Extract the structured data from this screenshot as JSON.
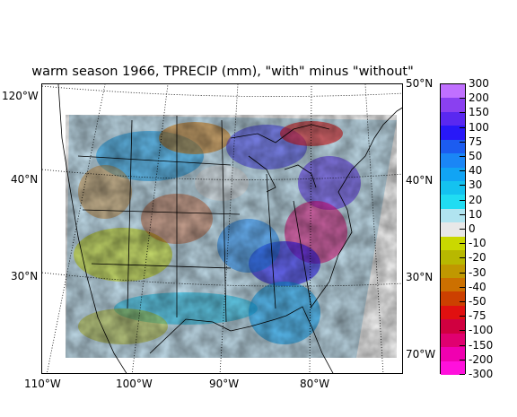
{
  "title": "warm season 1966, TPRECIP (mm), \"with\" minus \"without\"",
  "lat_labels_left": [
    "120°W",
    "40°N",
    "30°N"
  ],
  "lat_labels_right": [
    "50°N",
    "40°N",
    "30°N",
    "70°W"
  ],
  "lon_labels_bottom": [
    "110°W",
    "100°W",
    "90°W",
    "80°W"
  ],
  "colorbar": {
    "labels": [
      "300",
      "200",
      "150",
      "100",
      "75",
      "50",
      "40",
      "30",
      "20",
      "10",
      "0",
      "-10",
      "-20",
      "-30",
      "-40",
      "-50",
      "-75",
      "-100",
      "-150",
      "-200",
      "-300"
    ],
    "colors": [
      "#c070ff",
      "#8a40f0",
      "#5a28f0",
      "#2818f8",
      "#1c5cf0",
      "#1a86f6",
      "#11a4f4",
      "#14c2f0",
      "#20dcf2",
      "#b0e4f0",
      "#e8e8e8",
      "#cad800",
      "#b8b800",
      "#c09800",
      "#cc7000",
      "#cc4000",
      "#e01010",
      "#d00040",
      "#e00070",
      "#f000b0",
      "#ff10dc"
    ]
  },
  "colors": {
    "border": "#000000",
    "gridline": "#000000",
    "background": "#ffffff"
  }
}
